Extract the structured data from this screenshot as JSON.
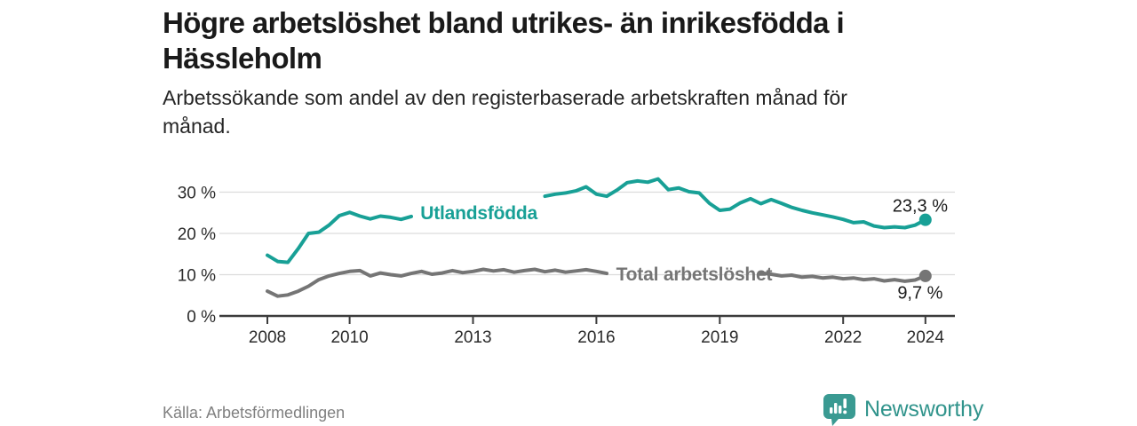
{
  "header": {
    "title_lines": [
      "Högre arbetslöshet bland utrikes- än inrikesfödda i",
      "Hässleholm"
    ],
    "subtitle_lines": [
      "Arbetssökande som andel av den registerbaserade arbetskraften månad för",
      "månad."
    ]
  },
  "footer": {
    "source": "Källa: Arbetsförmedlingen",
    "brand": "Newsworthy"
  },
  "colors": {
    "accent_teal": "#18a096",
    "series_gray": "#757575",
    "logo_teal": "#3a9a92",
    "grid": "#dcdcdc",
    "axis": "#3c3c3c",
    "axis_text": "#2b2b2b",
    "value_text": "#1c1c1c"
  },
  "chart_data": {
    "type": "line",
    "title": "Högre arbetslöshet bland utrikes- än inrikesfödda i Hässleholm",
    "subtitle": "Arbetssökande som andel av den registerbaserade arbetskraften månad för månad.",
    "x_unit": "decimal_year",
    "xlim": [
      2007.8,
      2024.9
    ],
    "ylim": [
      0,
      35
    ],
    "grid": "horizontal",
    "legend_position": "inline-labels",
    "x_ticks": [
      2008,
      2010,
      2013,
      2016,
      2019,
      2022,
      2024
    ],
    "x_tick_labels": [
      "2008",
      "2010",
      "2013",
      "2016",
      "2019",
      "2022",
      "2024"
    ],
    "y_ticks": [
      0,
      10,
      20,
      30
    ],
    "y_tick_labels": [
      "0 %",
      "10 %",
      "20 %",
      "30 %"
    ],
    "x": [
      2008,
      2008.25,
      2008.5,
      2008.75,
      2009,
      2009.25,
      2009.5,
      2009.75,
      2010,
      2010.25,
      2010.5,
      2010.75,
      2011,
      2011.25,
      2011.5,
      2011.75,
      2012,
      2012.25,
      2012.5,
      2012.75,
      2013,
      2013.25,
      2013.5,
      2013.75,
      2014,
      2014.25,
      2014.5,
      2014.75,
      2015,
      2015.25,
      2015.5,
      2015.75,
      2016,
      2016.25,
      2016.5,
      2016.75,
      2017,
      2017.25,
      2017.5,
      2017.75,
      2018,
      2018.25,
      2018.5,
      2018.75,
      2019,
      2019.25,
      2019.5,
      2019.75,
      2020,
      2020.25,
      2020.5,
      2020.75,
      2021,
      2021.25,
      2021.5,
      2021.75,
      2022,
      2022.25,
      2022.5,
      2022.75,
      2023,
      2023.25,
      2023.5,
      2023.75,
      2024
    ],
    "series": [
      {
        "name": "Utlandsfödda",
        "color": "#18a096",
        "inline_label": {
          "text": "Utlandsfödda",
          "year": 2011.72,
          "baseline_value": 23.4
        },
        "end_label": {
          "text": "23,3 %",
          "year": 2023.2,
          "baseline_value": 25.3
        },
        "end_value": 23.3,
        "values": [
          14.7,
          13.2,
          13.0,
          16.3,
          20.0,
          20.3,
          22.0,
          24.3,
          25.1,
          24.2,
          23.5,
          24.2,
          23.9,
          23.4,
          24.1,
          null,
          null,
          null,
          null,
          null,
          null,
          null,
          null,
          null,
          null,
          null,
          null,
          29.0,
          29.5,
          29.8,
          30.3,
          31.3,
          29.5,
          29.0,
          30.5,
          32.3,
          32.7,
          32.4,
          33.2,
          30.6,
          31.0,
          30.1,
          29.8,
          27.3,
          25.6,
          25.9,
          27.4,
          28.4,
          27.2,
          28.2,
          27.3,
          26.3,
          25.6,
          25.0,
          24.5,
          24.0,
          23.4,
          22.6,
          22.8,
          21.8,
          21.4,
          21.6,
          21.4,
          22.0,
          23.3
        ]
      },
      {
        "name": "Total arbetslöshet",
        "color": "#757575",
        "inline_label": {
          "text": "Total arbetslöshet",
          "year": 2016.48,
          "baseline_value": 8.55
        },
        "end_label": {
          "text": "9,7 %",
          "year": 2023.32,
          "baseline_value": 4.2
        },
        "end_value": 9.7,
        "values": [
          6.0,
          4.8,
          5.1,
          6.0,
          7.2,
          8.8,
          9.7,
          10.3,
          10.8,
          11.0,
          9.7,
          10.4,
          10.0,
          9.7,
          10.3,
          10.8,
          10.1,
          10.4,
          11.0,
          10.5,
          10.8,
          11.3,
          10.9,
          11.2,
          10.6,
          11.0,
          11.3,
          10.7,
          11.1,
          10.6,
          10.9,
          11.2,
          10.8,
          10.3,
          null,
          null,
          null,
          null,
          null,
          null,
          null,
          null,
          null,
          null,
          null,
          null,
          null,
          null,
          10.4,
          10.1,
          9.7,
          9.9,
          9.4,
          9.6,
          9.2,
          9.4,
          9.0,
          9.2,
          8.8,
          9.0,
          8.5,
          8.8,
          8.4,
          8.7,
          9.7
        ]
      }
    ]
  }
}
